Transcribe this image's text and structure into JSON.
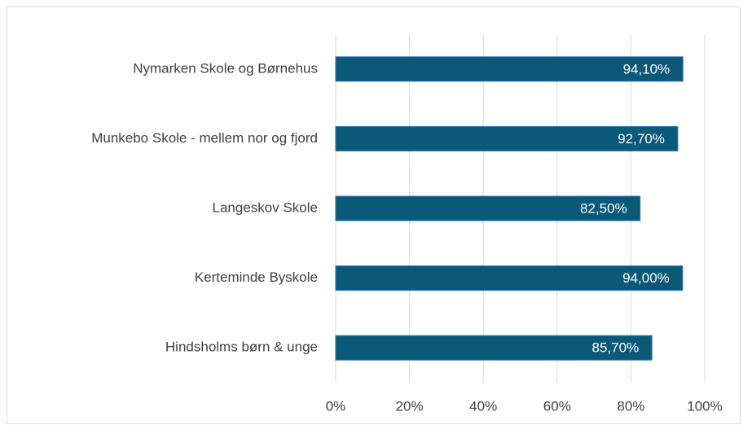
{
  "chart_data": {
    "type": "bar",
    "orientation": "horizontal",
    "categories": [
      "Nymarken Skole og Børnehus",
      "Munkebo Skole - mellem nor og fjord",
      "Langeskov Skole",
      "Kerteminde Byskole",
      "Hindsholms børn & unge"
    ],
    "values": [
      94.1,
      92.7,
      82.5,
      94.0,
      85.7
    ],
    "value_labels": [
      "94,10%",
      "92,70%",
      "82,50%",
      "94,00%",
      "85,70%"
    ],
    "color": "#0b5978",
    "xlim": [
      0,
      100
    ],
    "xticks": [
      {
        "value": 0,
        "label": "0%"
      },
      {
        "value": 20,
        "label": "20%"
      },
      {
        "value": 40,
        "label": "40%"
      },
      {
        "value": 60,
        "label": "60%"
      },
      {
        "value": 80,
        "label": "80%"
      },
      {
        "value": 100,
        "label": "100%"
      }
    ],
    "grid": true
  }
}
